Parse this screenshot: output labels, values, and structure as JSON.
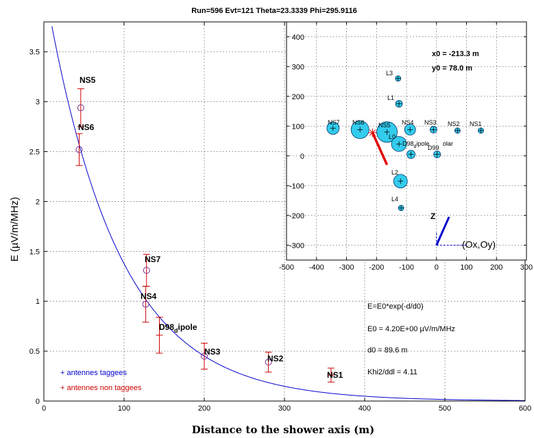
{
  "chart_data": [
    {
      "type": "scatter",
      "title": "Run=596 Evt=121 Theta=23.3339 Phi=295.9116",
      "xlabel": "Distance to the shower axis (m)",
      "ylabel": "E (µV/m/MHz)",
      "xlim": [
        0,
        600
      ],
      "ylim": [
        0,
        3.8
      ],
      "xticks": [
        0,
        100,
        200,
        300,
        400,
        500,
        600
      ],
      "yticks": [
        0,
        0.5,
        1,
        1.5,
        2,
        2.5,
        3,
        3.5
      ],
      "xtick_labels": [
        "0",
        "100",
        "200",
        "300",
        "400",
        "500",
        "600"
      ],
      "ytick_labels": [
        "0",
        "0.5",
        "1",
        "1.5",
        "2",
        "2.5",
        "3",
        "3.5"
      ],
      "grid": true,
      "fit": {
        "E0": 4.2,
        "d0": 89.6,
        "color": "#0000cc"
      },
      "points": [
        {
          "name": "NS5",
          "x": 46,
          "y": 2.94,
          "err": 0.19,
          "marker": "circle"
        },
        {
          "name": "NS6",
          "x": 44,
          "y": 2.52,
          "err": 0.16,
          "marker": "circle"
        },
        {
          "name": "NS7",
          "x": 128,
          "y": 1.31,
          "err": 0.16,
          "marker": "circle"
        },
        {
          "name": "NS4",
          "x": 127,
          "y": 0.97,
          "err": 0.18,
          "marker": "circle"
        },
        {
          "name": "D98_dipole",
          "x": 144,
          "y": 0.66,
          "err": 0.18,
          "marker": "plus"
        },
        {
          "name": "NS3",
          "x": 200,
          "y": 0.45,
          "err": 0.13,
          "marker": "circle"
        },
        {
          "name": "NS2",
          "x": 280,
          "y": 0.39,
          "err": 0.1,
          "marker": "circle"
        },
        {
          "name": "NS1",
          "x": 358,
          "y": 0.26,
          "err": 0.07,
          "marker": "plus"
        }
      ],
      "point_labels": {
        "NS5": "NS5",
        "NS6": "NS6",
        "NS7": "NS7",
        "NS4": "NS4",
        "D98_dipole_main": "D98",
        "D98_dipole_sub": "d",
        "D98_dipole_tail": "ipole",
        "NS3": "NS3",
        "NS2": "NS2",
        "NS1": "NS1"
      },
      "legend": {
        "placement": "bottom-left",
        "items": [
          {
            "label": "+ antennes taggees",
            "color": "#0000cc"
          },
          {
            "label": "+ antennes non taggees",
            "color": "#cc0000"
          }
        ]
      },
      "annotations": {
        "formula": "E=E0*exp(-d/d0)",
        "e0": "E0 = 4.20E+00 µV/m/MHz",
        "d0": "d0 = 89.6 m",
        "khi2": "Khi2/ddl = 4.11"
      }
    },
    {
      "type": "scatter",
      "title": "",
      "xlim": [
        -500,
        300
      ],
      "ylim": [
        -350,
        450
      ],
      "xticks": [
        -500,
        -400,
        -300,
        -200,
        -100,
        0,
        100,
        200,
        300
      ],
      "yticks": [
        -300,
        -200,
        -100,
        0,
        100,
        200,
        300,
        400
      ],
      "xtick_labels": [
        "-500",
        "-400",
        "-300",
        "-200",
        "-100",
        "0",
        "100",
        "200",
        "300"
      ],
      "ytick_labels": [
        "-300",
        "-200",
        "-100",
        "0",
        "100",
        "200",
        "300",
        "400"
      ],
      "grid": true,
      "core": {
        "x0_label": "x0 = -213.3 m",
        "y0_label": "y0 = 78.0 m",
        "x": -213.3,
        "y": 78.0
      },
      "shower_direction": {
        "x1": -213.3,
        "y1": 78.0,
        "x2": -165,
        "y2": -30,
        "color": "#e00000"
      },
      "antennas": [
        {
          "name": "L3",
          "x": -128,
          "y": 260,
          "r": 4
        },
        {
          "name": "L1",
          "x": -125,
          "y": 175,
          "r": 5
        },
        {
          "name": "NS7",
          "x": -345,
          "y": 93,
          "r": 9
        },
        {
          "name": "NS6",
          "x": -255,
          "y": 88,
          "r": 13
        },
        {
          "name": "NS5",
          "x": -165,
          "y": 80,
          "r": 15
        },
        {
          "name": "NS4",
          "x": -88,
          "y": 88,
          "r": 8
        },
        {
          "name": "NS3",
          "x": -10,
          "y": 88,
          "r": 5
        },
        {
          "name": "NS2",
          "x": 70,
          "y": 85,
          "r": 4
        },
        {
          "name": "NS1",
          "x": 148,
          "y": 85,
          "r": 4
        },
        {
          "name": "L0",
          "x": -125,
          "y": 40,
          "r": 11
        },
        {
          "name": "D98_dipole_polar",
          "x": -85,
          "y": 5,
          "r": 6
        },
        {
          "name": "D99",
          "x": 2,
          "y": 5,
          "r": 5
        },
        {
          "name": "L2",
          "x": -120,
          "y": -85,
          "r": 10
        },
        {
          "name": "L4",
          "x": -118,
          "y": -175,
          "r": 4
        }
      ],
      "antenna_labels": {
        "L3": "L3",
        "L1": "L1",
        "NS7": "NS7",
        "NS6": "NS6",
        "NS5": "NS5",
        "NS4": "NS4",
        "NS3": "NS3",
        "NS2": "NS2",
        "NS1": "NS1",
        "L0": "L0",
        "D98_a": "D98",
        "D98_b": "d",
        "D98_c": "ipole",
        "D98_d": "olar",
        "D99": "D99",
        "L2": "L2",
        "L4": "L4"
      },
      "axes_indicator": {
        "z_label": "Z",
        "ox_label": "(Ox,Oy)"
      },
      "colors": {
        "antenna_fill": "#33ccee",
        "antenna_stroke": "#003366",
        "cross": "#000000"
      }
    }
  ]
}
